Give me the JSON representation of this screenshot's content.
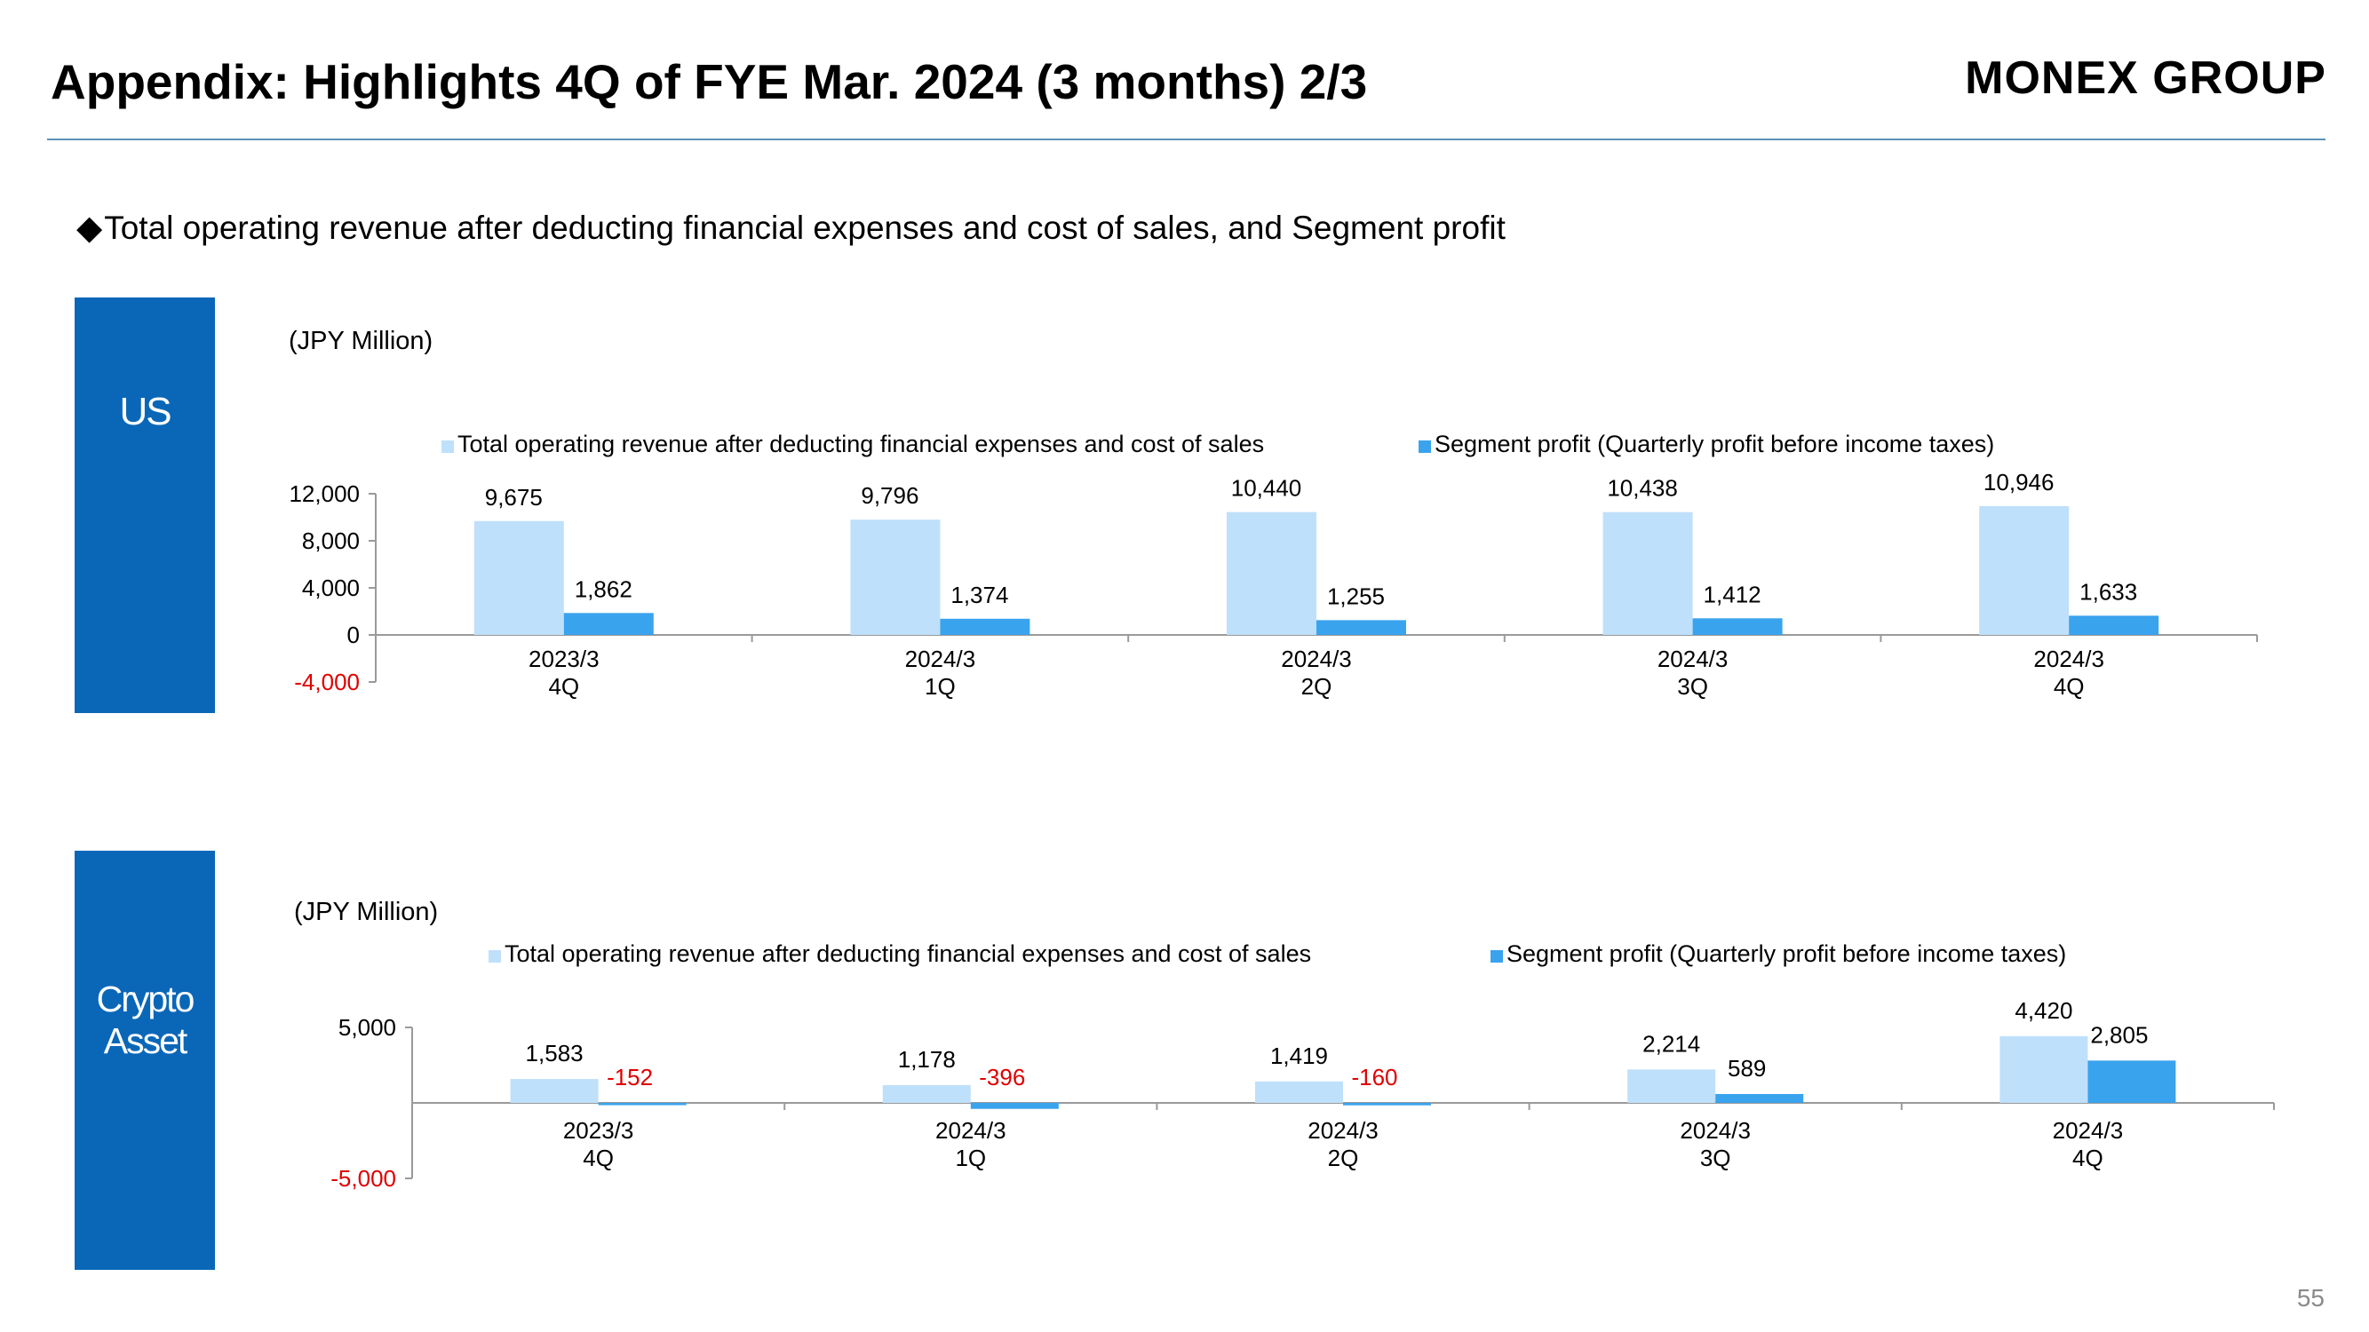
{
  "header": {
    "title": "Appendix: Highlights 4Q of FYE Mar. 2024 (3 months) 2/3",
    "logo": "MONEX GROUP"
  },
  "subtitle": {
    "bullet": "◆",
    "text": "Total operating revenue after deducting financial expenses and cost of sales, and Segment profit"
  },
  "segments": {
    "us": "US",
    "crypto_line1": "Crypto",
    "crypto_line2": "Asset"
  },
  "units": {
    "us": "(JPY Million)",
    "crypto": "(JPY Million)"
  },
  "page_number": "55",
  "colors": {
    "revenue": "#bfe0fb",
    "profit": "#3aa3ee",
    "negative": "#e00000",
    "segment_box": "#0a67b8",
    "rule": "#5b93b8"
  },
  "chart_data": [
    {
      "type": "bar",
      "categories": [
        [
          "2023/3",
          "4Q"
        ],
        [
          "2024/3",
          "1Q"
        ],
        [
          "2024/3",
          "2Q"
        ],
        [
          "2024/3",
          "3Q"
        ],
        [
          "2024/3",
          "4Q"
        ]
      ],
      "series": [
        {
          "name": "Total operating revenue after deducting financial expenses and cost of sales",
          "values": [
            9675,
            9796,
            10440,
            10438,
            10946
          ],
          "labels": [
            "9,675",
            "9,796",
            "10,440",
            "10,438",
            "10,946"
          ]
        },
        {
          "name": "Segment profit (Quarterly profit before income taxes)",
          "values": [
            1862,
            1374,
            1255,
            1412,
            1633
          ],
          "labels": [
            "1,862",
            "1,374",
            "1,255",
            "1,412",
            "1,633"
          ]
        }
      ],
      "ylim": [
        -4000,
        12000
      ],
      "yticks": [
        12000,
        8000,
        4000,
        0,
        -4000
      ],
      "ytick_labels": [
        "12,000",
        "8,000",
        "4,000",
        "0",
        "-4,000"
      ],
      "legend": "top",
      "grid": false
    },
    {
      "type": "bar",
      "categories": [
        [
          "2023/3",
          "4Q"
        ],
        [
          "2024/3",
          "1Q"
        ],
        [
          "2024/3",
          "2Q"
        ],
        [
          "2024/3",
          "3Q"
        ],
        [
          "2024/3",
          "4Q"
        ]
      ],
      "series": [
        {
          "name": "Total operating revenue after deducting financial expenses and cost of sales",
          "values": [
            1583,
            1178,
            1419,
            2214,
            4420
          ],
          "labels": [
            "1,583",
            "1,178",
            "1,419",
            "2,214",
            "4,420"
          ]
        },
        {
          "name": "Segment profit (Quarterly profit before income taxes)",
          "values": [
            -152,
            -396,
            -160,
            589,
            2805
          ],
          "labels": [
            "-152",
            "-396",
            "-160",
            "589",
            "2,805"
          ]
        }
      ],
      "ylim": [
        -5000,
        5000
      ],
      "yticks": [
        5000,
        -5000
      ],
      "ytick_labels": [
        "5,000",
        "-5,000"
      ],
      "legend": "top",
      "grid": false
    }
  ]
}
